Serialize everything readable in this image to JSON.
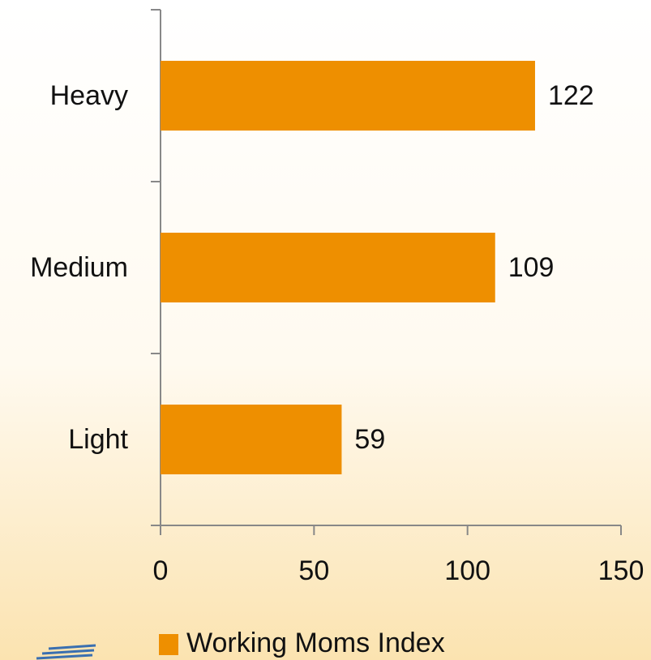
{
  "chart_data": {
    "type": "bar",
    "orientation": "horizontal",
    "categories": [
      "Heavy",
      "Medium",
      "Light"
    ],
    "series": [
      {
        "name": "Working Moms Index",
        "color": "#ee8f00",
        "values": [
          122,
          109,
          59
        ]
      }
    ],
    "xlim": [
      0,
      150
    ],
    "xticks": [
      0,
      50,
      100,
      150
    ],
    "legend": "bottom"
  }
}
